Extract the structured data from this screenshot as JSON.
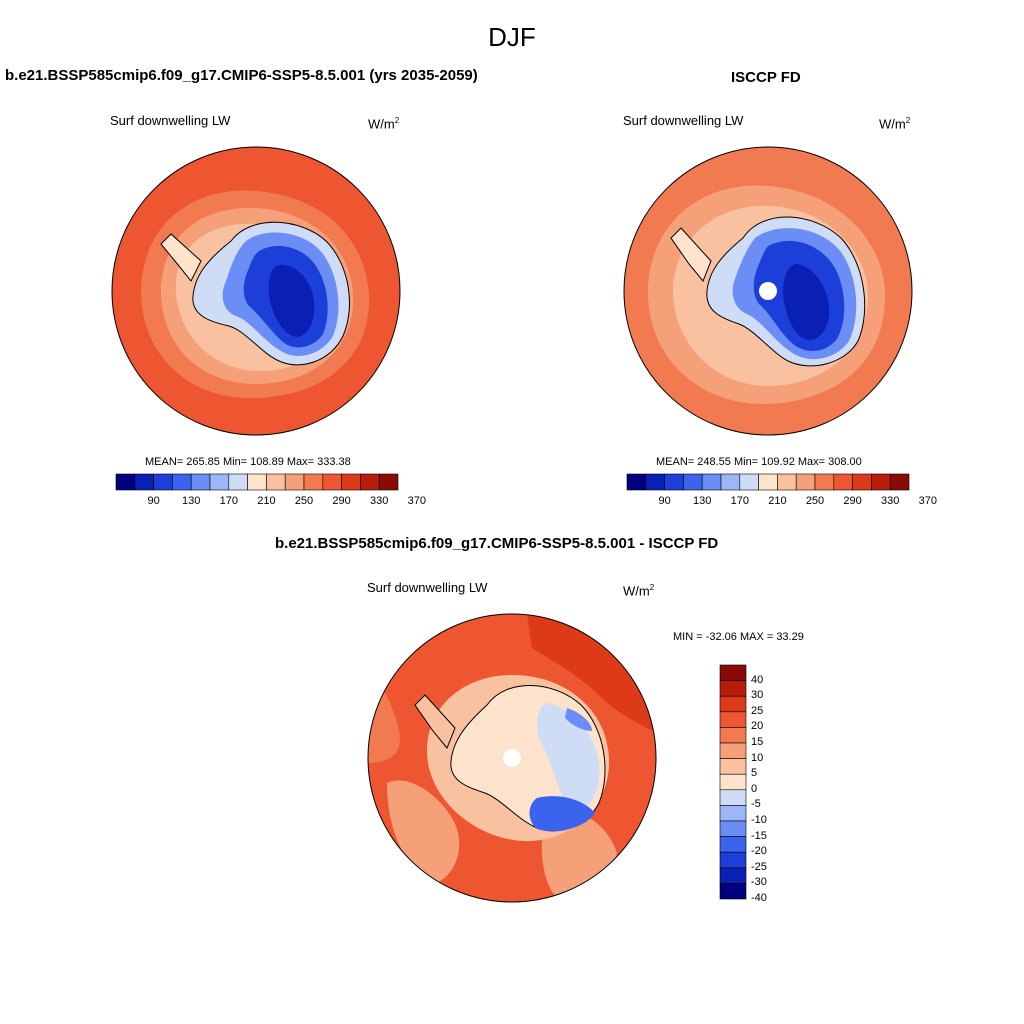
{
  "title": "DJF",
  "panels": [
    {
      "heading": "b.e21.BSSP585cmip6.f09_g17.CMIP6-SSP5-8.5.001 (yrs 2035-2059)",
      "variable": "Surf downwelling LW",
      "units_base": "W/m",
      "units_exp": "2",
      "stats": "MEAN= 265.85  Min= 108.89  Max= 333.38",
      "ticks": [
        "90",
        "130",
        "170",
        "210",
        "250",
        "290",
        "330",
        "370"
      ],
      "has_polar_hole": false
    },
    {
      "heading": "ISCCP FD",
      "variable": "Surf downwelling LW",
      "units_base": "W/m",
      "units_exp": "2",
      "stats": "MEAN= 248.55  Min= 109.92  Max= 308.00",
      "ticks": [
        "90",
        "130",
        "170",
        "210",
        "250",
        "290",
        "330",
        "370"
      ],
      "has_polar_hole": true
    },
    {
      "heading": "b.e21.BSSP585cmip6.f09_g17.CMIP6-SSP5-8.5.001 - ISCCP FD",
      "variable": "Surf downwelling LW",
      "units_base": "W/m",
      "units_exp": "2",
      "stats": "MIN = -32.06 MAX =  33.29",
      "ticks": [
        "40",
        "30",
        "25",
        "20",
        "15",
        "10",
        "5",
        "0",
        "-5",
        "-10",
        "-15",
        "-20",
        "-25",
        "-30",
        "-40"
      ],
      "has_polar_hole": true
    }
  ],
  "colors": {
    "abs_scale": [
      "#000080",
      "#0a1fb3",
      "#1c3fd9",
      "#3a63ee",
      "#6a8ef5",
      "#9cb6f7",
      "#cfdcf6",
      "#fde2cc",
      "#f9c1a0",
      "#f6a07a",
      "#f27a51",
      "#ee5531",
      "#dd3a1a",
      "#b81d0c",
      "#8a0a05"
    ],
    "diff_scale": [
      "#8a0a05",
      "#b81d0c",
      "#dd3a1a",
      "#ee5531",
      "#f27a51",
      "#f6a07a",
      "#f9c1a0",
      "#fde2cc",
      "#cfdcf6",
      "#9cb6f7",
      "#6a8ef5",
      "#3a63ee",
      "#1c3fd9",
      "#0a1fb3",
      "#000080"
    ]
  }
}
